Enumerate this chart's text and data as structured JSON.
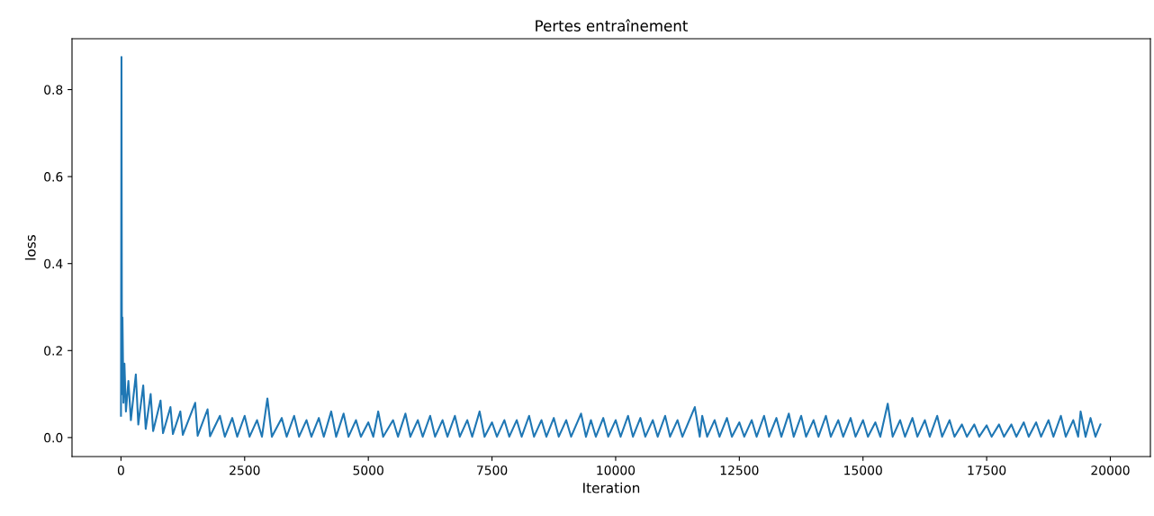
{
  "chart_data": {
    "type": "line",
    "title": "Pertes entraînement",
    "xlabel": "Iteration",
    "ylabel": "loss",
    "x": [
      0,
      10,
      20,
      30,
      50,
      70,
      100,
      150,
      200,
      300,
      350,
      450,
      500,
      600,
      650,
      800,
      850,
      1000,
      1050,
      1200,
      1250,
      1500,
      1550,
      1750,
      1800,
      2000,
      2100,
      2250,
      2350,
      2500,
      2600,
      2750,
      2850,
      2960,
      3050,
      3250,
      3350,
      3500,
      3600,
      3750,
      3850,
      4000,
      4100,
      4250,
      4350,
      4500,
      4600,
      4750,
      4850,
      5000,
      5100,
      5200,
      5300,
      5500,
      5600,
      5750,
      5850,
      6000,
      6100,
      6250,
      6350,
      6500,
      6600,
      6750,
      6850,
      7000,
      7100,
      7250,
      7350,
      7500,
      7600,
      7750,
      7850,
      8000,
      8100,
      8250,
      8350,
      8500,
      8600,
      8750,
      8850,
      9000,
      9100,
      9300,
      9400,
      9500,
      9600,
      9750,
      9850,
      10000,
      10100,
      10250,
      10350,
      10500,
      10600,
      10750,
      10850,
      11000,
      11100,
      11250,
      11350,
      11600,
      11700,
      11750,
      11850,
      12000,
      12100,
      12250,
      12350,
      12500,
      12600,
      12750,
      12850,
      13000,
      13100,
      13250,
      13350,
      13500,
      13600,
      13750,
      13850,
      14000,
      14100,
      14250,
      14350,
      14500,
      14600,
      14750,
      14850,
      15000,
      15100,
      15250,
      15350,
      15500,
      15600,
      15750,
      15850,
      16000,
      16100,
      16250,
      16350,
      16500,
      16600,
      16750,
      16850,
      17000,
      17100,
      17250,
      17350,
      17500,
      17600,
      17750,
      17850,
      18000,
      18100,
      18250,
      18350,
      18500,
      18600,
      18750,
      18850,
      19000,
      19100,
      19250,
      19350,
      19400,
      19500,
      19600,
      19700,
      19800
    ],
    "series": [
      {
        "color": "#1f77b4",
        "values": [
          0.05,
          0.875,
          0.1,
          0.276,
          0.08,
          0.17,
          0.06,
          0.13,
          0.04,
          0.145,
          0.03,
          0.12,
          0.02,
          0.1,
          0.015,
          0.085,
          0.01,
          0.07,
          0.008,
          0.06,
          0.006,
          0.08,
          0.004,
          0.065,
          0.003,
          0.05,
          0.002,
          0.045,
          0.002,
          0.05,
          0.002,
          0.04,
          0.002,
          0.09,
          0.002,
          0.045,
          0.002,
          0.05,
          0.002,
          0.04,
          0.002,
          0.045,
          0.002,
          0.06,
          0.002,
          0.055,
          0.002,
          0.04,
          0.002,
          0.035,
          0.002,
          0.06,
          0.002,
          0.04,
          0.002,
          0.055,
          0.002,
          0.04,
          0.002,
          0.05,
          0.002,
          0.04,
          0.002,
          0.05,
          0.002,
          0.04,
          0.002,
          0.06,
          0.002,
          0.035,
          0.002,
          0.04,
          0.002,
          0.04,
          0.002,
          0.05,
          0.002,
          0.04,
          0.002,
          0.045,
          0.002,
          0.04,
          0.002,
          0.055,
          0.002,
          0.04,
          0.002,
          0.045,
          0.002,
          0.04,
          0.002,
          0.05,
          0.002,
          0.045,
          0.002,
          0.04,
          0.002,
          0.05,
          0.002,
          0.04,
          0.002,
          0.07,
          0.002,
          0.05,
          0.002,
          0.04,
          0.002,
          0.045,
          0.002,
          0.035,
          0.002,
          0.04,
          0.002,
          0.05,
          0.002,
          0.045,
          0.002,
          0.055,
          0.002,
          0.05,
          0.002,
          0.04,
          0.002,
          0.05,
          0.002,
          0.04,
          0.002,
          0.045,
          0.002,
          0.04,
          0.002,
          0.035,
          0.002,
          0.078,
          0.002,
          0.04,
          0.002,
          0.045,
          0.002,
          0.04,
          0.002,
          0.05,
          0.002,
          0.04,
          0.002,
          0.03,
          0.002,
          0.03,
          0.002,
          0.028,
          0.002,
          0.03,
          0.002,
          0.03,
          0.002,
          0.035,
          0.002,
          0.035,
          0.002,
          0.04,
          0.002,
          0.05,
          0.002,
          0.04,
          0.002,
          0.06,
          0.002,
          0.045,
          0.002,
          0.03
        ]
      }
    ],
    "xlim": [
      -990,
      20810
    ],
    "ylim": [
      -0.0437,
      0.917
    ],
    "xticks": [
      0,
      2500,
      5000,
      7500,
      10000,
      12500,
      15000,
      17500,
      20000
    ],
    "yticks": [
      {
        "value": 0,
        "label": "0.0"
      },
      {
        "value": 0.2,
        "label": "0.2"
      },
      {
        "value": 0.4,
        "label": "0.4"
      },
      {
        "value": 0.6,
        "label": "0.6"
      },
      {
        "value": 0.8,
        "label": "0.8"
      }
    ],
    "grid": false,
    "legend": false
  }
}
